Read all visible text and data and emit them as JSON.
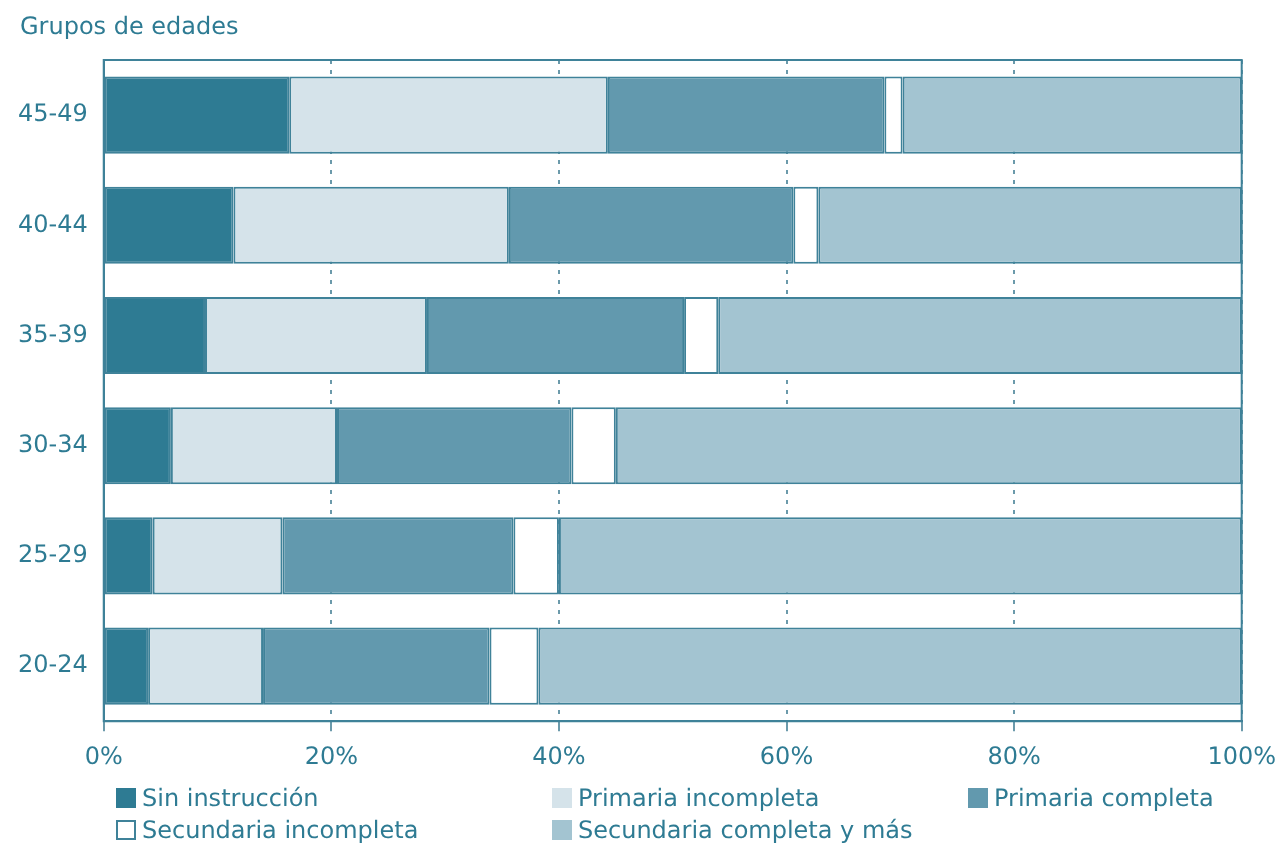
{
  "chart_data": {
    "type": "bar",
    "orientation": "horizontal",
    "stacked": true,
    "ylabel": "Grupos de edades",
    "categories": [
      "45-49",
      "40-44",
      "35-39",
      "30-34",
      "25-29",
      "20-24"
    ],
    "series": [
      {
        "name": "Sin instrucción",
        "color": "#2e7b93",
        "values": [
          16.3,
          11.4,
          8.9,
          5.9,
          4.3,
          3.9
        ]
      },
      {
        "name": "Primaria incompleta",
        "color": "#d5e3ea",
        "values": [
          28.0,
          24.2,
          19.5,
          14.6,
          11.4,
          10.1
        ]
      },
      {
        "name": "Primaria completa",
        "color": "#6299ae",
        "values": [
          24.3,
          25.0,
          22.6,
          20.6,
          20.3,
          19.9
        ]
      },
      {
        "name": "Secundaria incompleta",
        "color": "#ffffff",
        "values": [
          1.6,
          2.2,
          3.0,
          3.9,
          4.0,
          4.3
        ]
      },
      {
        "name": "Secundaria completa y más",
        "color": "#a3c4d1",
        "values": [
          29.8,
          37.2,
          46.0,
          55.0,
          60.0,
          61.8
        ]
      }
    ],
    "xlim": [
      0,
      100
    ],
    "xticks": [
      {
        "value": 0,
        "label": "0%"
      },
      {
        "value": 20,
        "label": "20%"
      },
      {
        "value": 40,
        "label": "40%"
      },
      {
        "value": 60,
        "label": "60%"
      },
      {
        "value": 80,
        "label": "80%"
      },
      {
        "value": 100,
        "label": "100%"
      }
    ],
    "grid": "x",
    "legend": "bottom"
  }
}
